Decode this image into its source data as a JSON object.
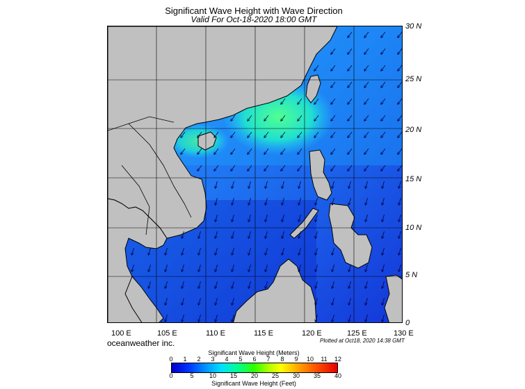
{
  "title": "Significant Wave Height with Wave Direction",
  "subtitle": "Valid For Oct-18-2020 18:00 GMT",
  "longitude_labels": [
    "100 E",
    "105 E",
    "110 E",
    "115 E",
    "120 E",
    "125 E",
    "130 E"
  ],
  "latitude_labels": [
    "30 N",
    "25 N",
    "20 N",
    "15 N",
    "10 N",
    "5 N",
    "0"
  ],
  "company": "oceanweather inc.",
  "plotted": "Plotted at Oct18, 2020 14:38 GMT",
  "scale": {
    "title_meters": "Significant Wave Height (Meters)",
    "ticks_meters": [
      "0",
      "1",
      "2",
      "3",
      "4",
      "5",
      "6",
      "7",
      "8",
      "9",
      "10",
      "11",
      "12"
    ],
    "ticks_feet": [
      "0",
      "5",
      "10",
      "15",
      "20",
      "25",
      "30",
      "35",
      "40"
    ],
    "title_feet": "Significant Wave Height (Feet)"
  },
  "colors": {
    "land": "#c0c0c0",
    "sea_low": "#1a3ae6",
    "sea_mid": "#1e90ff",
    "sea_high": "#3cf0a0",
    "arrow": "#000040"
  },
  "wave_direction": "northeast-to-southwest"
}
